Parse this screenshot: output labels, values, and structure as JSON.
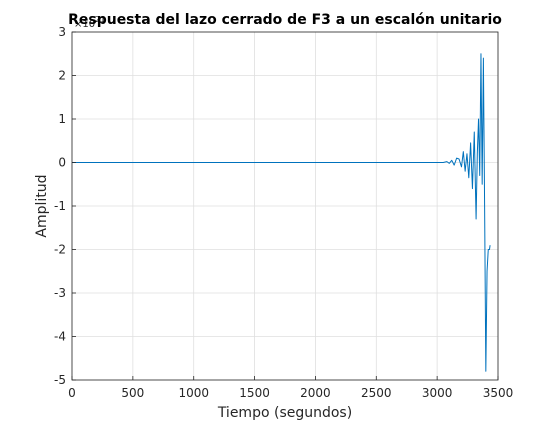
{
  "chart_data": {
    "type": "line",
    "title": "Respuesta del lazo cerrado de F3 a un escalón unitario",
    "xlabel": "Tiempo (segundos)",
    "ylabel": "Amplitud",
    "y_exponent_label": "×10^21",
    "xlim": [
      0,
      3500
    ],
    "ylim": [
      -5,
      3
    ],
    "x_ticks": [
      "0",
      "500",
      "1000",
      "1500",
      "2000",
      "2500",
      "3000",
      "3500"
    ],
    "y_ticks": [
      "-5",
      "-4",
      "-3",
      "-2",
      "-1",
      "0",
      "1",
      "2",
      "3"
    ],
    "grid": true,
    "line_color": "#0072bd",
    "series": [
      {
        "x": [
          0,
          3000,
          3050,
          3080,
          3100,
          3120,
          3140,
          3160,
          3180,
          3200,
          3215,
          3230,
          3245,
          3260,
          3275,
          3290,
          3305,
          3320,
          3330,
          3340,
          3350,
          3360,
          3370,
          3380,
          3390,
          3400,
          3410,
          3420,
          3430,
          3435
        ],
        "y": [
          0,
          0,
          0,
          0.02,
          -0.02,
          0.05,
          -0.06,
          0.1,
          0.08,
          -0.1,
          0.25,
          -0.2,
          0.2,
          -0.35,
          0.45,
          -0.6,
          0.7,
          -1.3,
          0.2,
          1.0,
          -0.3,
          2.5,
          -0.5,
          2.4,
          -1.0,
          -4.8,
          -2.5,
          -2.0,
          -2.0,
          -1.9
        ]
      }
    ]
  }
}
